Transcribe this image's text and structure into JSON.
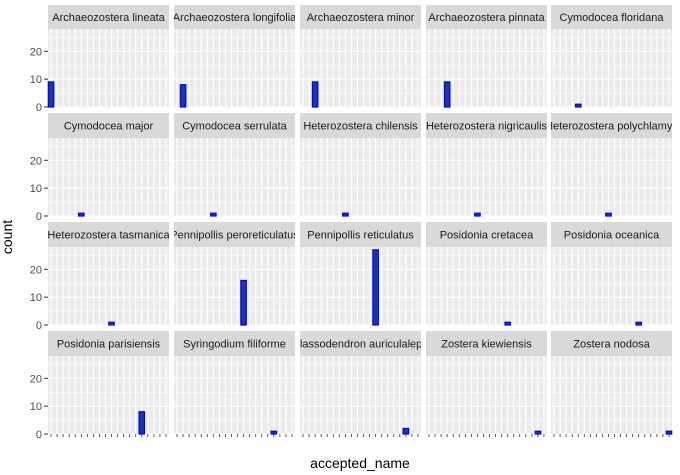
{
  "chart_data": {
    "type": "bar",
    "facet_layout": "wrap",
    "ncol": 5,
    "nrow": 4,
    "xlabel": "accepted_name",
    "ylabel": "count",
    "ylim": [
      0,
      28
    ],
    "yticks": [
      0,
      10,
      20
    ],
    "n_categories": 20,
    "grid": true,
    "colors": {
      "bar_fill": "#1f3a93",
      "bar_outline": "#0000ff",
      "panel_bg": "#ebebeb",
      "strip_bg": "#d9d9d9",
      "grid": "#ffffff"
    },
    "panels": [
      {
        "label": "Archaeozostera lineata",
        "category_index": 0,
        "count": 9
      },
      {
        "label": "Archaeozostera longifolia",
        "category_index": 1,
        "count": 8
      },
      {
        "label": "Archaeozostera minor",
        "category_index": 2,
        "count": 9
      },
      {
        "label": "Archaeozostera pinnata",
        "category_index": 3,
        "count": 9
      },
      {
        "label": "Cymodocea floridana",
        "category_index": 4,
        "count": 1
      },
      {
        "label": "Cymodocea major",
        "category_index": 5,
        "count": 1
      },
      {
        "label": "Cymodocea serrulata",
        "category_index": 6,
        "count": 1
      },
      {
        "label": "Heterozostera chilensis",
        "category_index": 7,
        "count": 1
      },
      {
        "label": "Heterozostera nigricaulis",
        "category_index": 8,
        "count": 1
      },
      {
        "label": "Heterozostera polychlamys",
        "category_index": 9,
        "count": 1
      },
      {
        "label": "Heterozostera tasmanica",
        "category_index": 10,
        "count": 1
      },
      {
        "label": "Pennipollis peroreticulatus",
        "category_index": 11,
        "count": 16
      },
      {
        "label": "Pennipollis reticulatus",
        "category_index": 12,
        "count": 27
      },
      {
        "label": "Posidonia cretacea",
        "category_index": 13,
        "count": 1
      },
      {
        "label": "Posidonia oceanica",
        "category_index": 14,
        "count": 1
      },
      {
        "label": "Posidonia parisiensis",
        "category_index": 15,
        "count": 8
      },
      {
        "label": "Syringodium filiforme",
        "category_index": 16,
        "count": 1
      },
      {
        "label": "Thalassodendron auriculaleporis",
        "category_index": 17,
        "count": 2
      },
      {
        "label": "Zostera kiewiensis",
        "category_index": 18,
        "count": 1
      },
      {
        "label": "Zostera nodosa",
        "category_index": 19,
        "count": 1
      }
    ]
  }
}
